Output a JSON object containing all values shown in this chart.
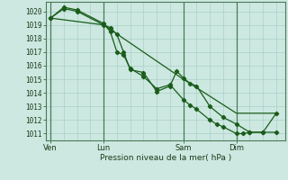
{
  "bg_color": "#cce8e0",
  "grid_color": "#aad0c8",
  "line_color": "#1a5c1a",
  "marker_color": "#1a5c1a",
  "xlabel": "Pression niveau de la mer( hPa )",
  "ylim": [
    1010.5,
    1020.7
  ],
  "yticks": [
    1011,
    1012,
    1013,
    1014,
    1015,
    1016,
    1017,
    1018,
    1019,
    1020
  ],
  "xtick_labels": [
    "Ven",
    "Lun",
    "Sam",
    "Dim"
  ],
  "xtick_positions": [
    0,
    24,
    60,
    84
  ],
  "vline_positions": [
    0,
    24,
    60,
    84
  ],
  "series1_x": [
    0,
    6,
    12,
    24,
    27,
    30,
    33,
    36,
    42,
    48,
    54,
    57,
    60,
    63,
    66,
    72,
    78,
    84,
    90,
    96,
    102
  ],
  "series1_y": [
    1019.5,
    1020.2,
    1020.0,
    1019.0,
    1018.8,
    1018.3,
    1017.0,
    1015.7,
    1015.5,
    1014.1,
    1014.5,
    1015.6,
    1015.1,
    1014.7,
    1014.5,
    1013.0,
    1012.2,
    1011.7,
    1011.1,
    1011.1,
    1011.1
  ],
  "series2_x": [
    0,
    6,
    12,
    24,
    27,
    30,
    33,
    36,
    42,
    48,
    54,
    60,
    63,
    66,
    72,
    75,
    78,
    84,
    87,
    90,
    96,
    102
  ],
  "series2_y": [
    1019.5,
    1020.3,
    1020.1,
    1019.1,
    1018.5,
    1017.0,
    1016.8,
    1015.8,
    1015.2,
    1014.3,
    1014.6,
    1013.5,
    1013.1,
    1012.8,
    1012.0,
    1011.7,
    1011.5,
    1011.0,
    1011.0,
    1011.1,
    1011.1,
    1012.5
  ],
  "series3_x": [
    0,
    24,
    60,
    84,
    102
  ],
  "series3_y": [
    1019.5,
    1019.0,
    1015.0,
    1012.5,
    1012.5
  ],
  "xlim": [
    -2,
    106
  ]
}
